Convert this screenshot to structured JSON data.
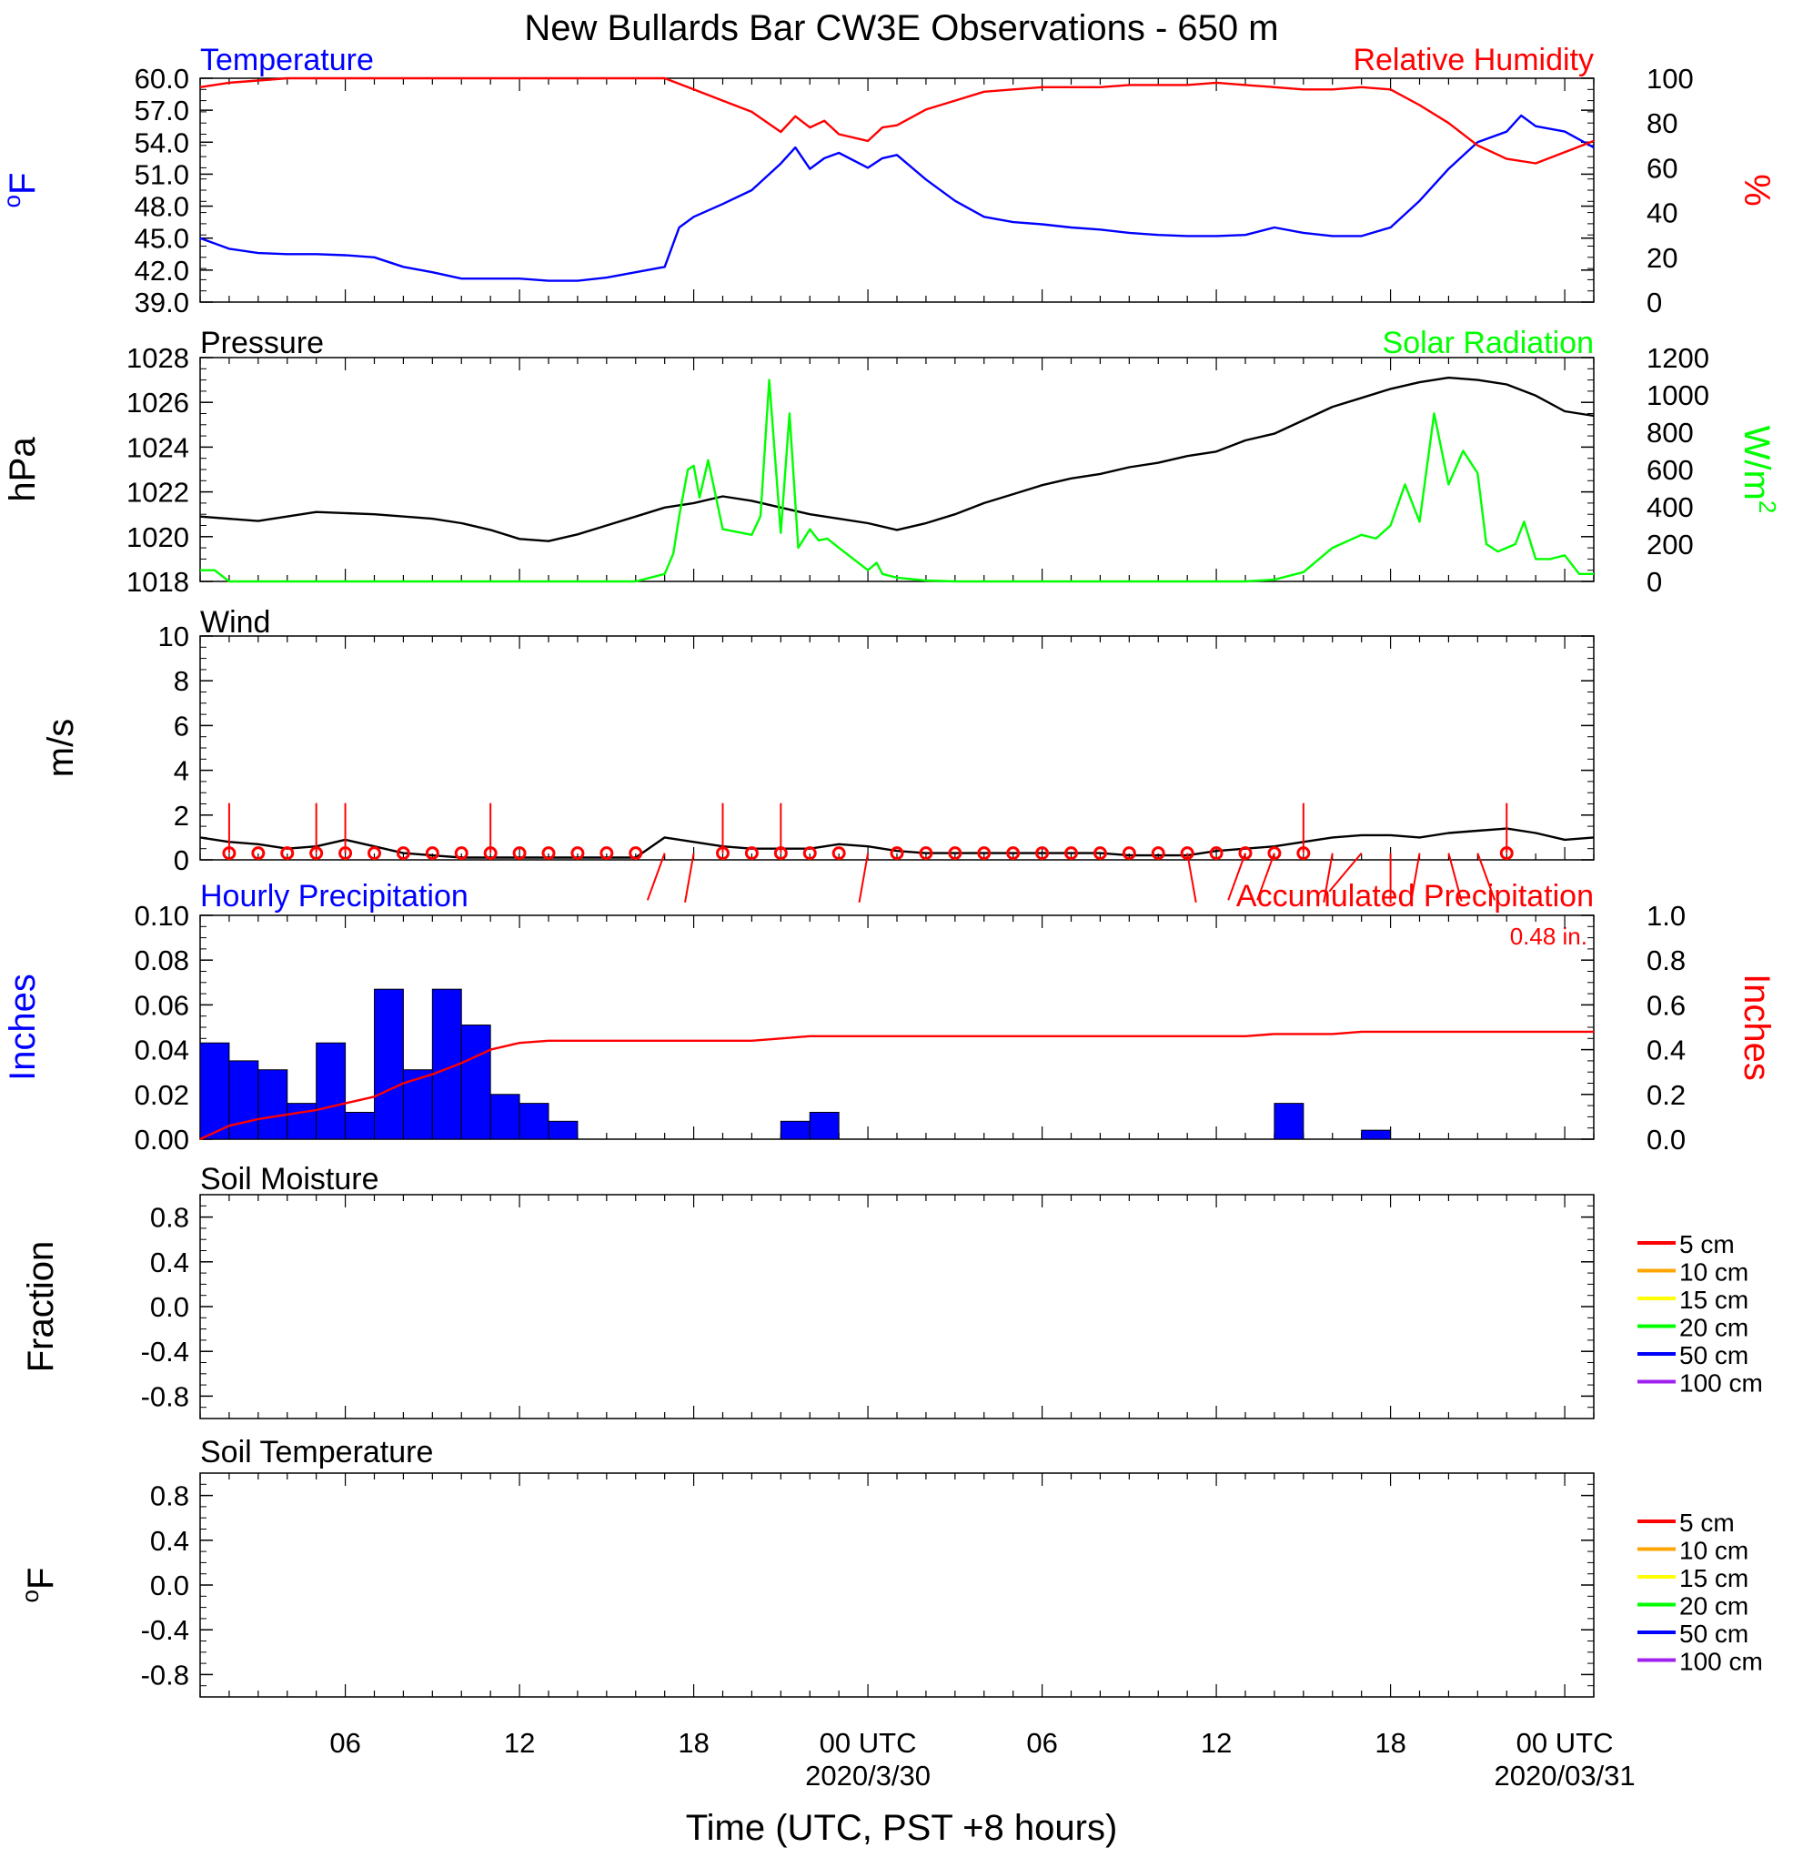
{
  "title": "New Bullards Bar CW3E Observations - 650 m",
  "xlabel": "Time (UTC, PST +8 hours)",
  "x_range_hours": [
    0,
    48
  ],
  "x_ticks": [
    {
      "h": 5,
      "label": "06",
      "date": ""
    },
    {
      "h": 11,
      "label": "12",
      "date": ""
    },
    {
      "h": 17,
      "label": "18",
      "date": ""
    },
    {
      "h": 23,
      "label": "00 UTC",
      "date": "2020/3/30"
    },
    {
      "h": 29,
      "label": "06",
      "date": ""
    },
    {
      "h": 35,
      "label": "12",
      "date": ""
    },
    {
      "h": 41,
      "label": "18",
      "date": ""
    },
    {
      "h": 47,
      "label": "00 UTC",
      "date": "2020/03/31"
    }
  ],
  "colors": {
    "temperature": "#0000ff",
    "humidity": "#ff0000",
    "pressure": "#000000",
    "solar": "#00ff00",
    "wind": "#000000",
    "wind_barb": "#ff0000",
    "hourly_precip": "#0000ff",
    "accum_precip": "#ff0000"
  },
  "legend_soil": [
    "5 cm",
    "10 cm",
    "15 cm",
    "20 cm",
    "50 cm",
    "100 cm"
  ],
  "legend_soil_colors": [
    "#ff0000",
    "#ffa500",
    "#ffff00",
    "#00ff00",
    "#0000ff",
    "#a020f0"
  ],
  "chart_data": [
    {
      "type": "line",
      "title_left": "Temperature",
      "title_right": "Relative Humidity",
      "ylabel_left": "oF",
      "ylabel_right": "%",
      "ylim_left": [
        39,
        60
      ],
      "yticks_left": [
        "60.0",
        "57.0",
        "54.0",
        "51.0",
        "48.0",
        "45.0",
        "42.0",
        "39.0"
      ],
      "ylim_right": [
        0,
        100
      ],
      "yticks_right": [
        "100",
        "80",
        "60",
        "40",
        "20",
        "0"
      ],
      "series": [
        {
          "name": "Temperature",
          "axis": "left",
          "x": [
            0,
            1,
            2,
            3,
            4,
            5,
            6,
            7,
            8,
            9,
            10,
            11,
            12,
            13,
            14,
            15,
            16,
            16.5,
            17,
            18,
            19,
            20,
            20.5,
            21,
            21.5,
            22,
            23,
            23.5,
            24,
            25,
            26,
            27,
            28,
            29,
            30,
            31,
            32,
            33,
            34,
            35,
            36,
            37,
            38,
            39,
            40,
            41,
            42,
            43,
            44,
            45,
            45.5,
            46,
            47,
            48
          ],
          "y": [
            45.0,
            44.0,
            43.6,
            43.5,
            43.5,
            43.4,
            43.2,
            42.3,
            41.8,
            41.2,
            41.2,
            41.2,
            41.0,
            41.0,
            41.3,
            41.8,
            42.3,
            46.0,
            47.0,
            48.2,
            49.5,
            52.0,
            53.5,
            51.5,
            52.5,
            53.0,
            51.6,
            52.5,
            52.8,
            50.5,
            48.5,
            47.0,
            46.5,
            46.3,
            46.0,
            45.8,
            45.5,
            45.3,
            45.2,
            45.2,
            45.3,
            46.0,
            45.5,
            45.2,
            45.2,
            46.0,
            48.5,
            51.5,
            54.0,
            55.0,
            56.5,
            55.5,
            55.0,
            53.5
          ]
        },
        {
          "name": "Relative Humidity",
          "axis": "right",
          "x": [
            0,
            1,
            2,
            3,
            4,
            5,
            6,
            7,
            8,
            9,
            10,
            11,
            12,
            13,
            14,
            15,
            16,
            17,
            18,
            19,
            20,
            20.5,
            21,
            21.5,
            22,
            23,
            23.5,
            24,
            25,
            26,
            27,
            28,
            29,
            30,
            31,
            32,
            33,
            34,
            35,
            36,
            37,
            38,
            39,
            40,
            41,
            42,
            43,
            44,
            45,
            46,
            47,
            48
          ],
          "y": [
            96,
            98,
            99,
            100,
            100,
            100,
            100,
            100,
            100,
            100,
            100,
            100,
            100,
            100,
            100,
            100,
            100,
            95,
            90,
            85,
            76,
            83,
            78,
            81,
            75,
            72,
            78,
            79,
            86,
            90,
            94,
            95,
            96,
            96,
            96,
            97,
            97,
            97,
            98,
            97,
            96,
            95,
            95,
            96,
            95,
            88,
            80,
            70,
            64,
            62,
            67,
            72
          ]
        }
      ]
    },
    {
      "type": "line",
      "title_left": "Pressure",
      "title_right": "Solar Radiation",
      "ylabel_left": "hPa",
      "ylabel_right": "W/m2",
      "ylim_left": [
        1018,
        1028
      ],
      "yticks_left": [
        "1028",
        "1026",
        "1024",
        "1022",
        "1020",
        "1018"
      ],
      "ylim_right": [
        0,
        1200
      ],
      "yticks_right": [
        "1200",
        "1000",
        "800",
        "600",
        "400",
        "200",
        "0"
      ],
      "series": [
        {
          "name": "Pressure",
          "axis": "left",
          "x": [
            0,
            2,
            4,
            6,
            8,
            9,
            10,
            11,
            12,
            13,
            14,
            15,
            16,
            17,
            18,
            19,
            20,
            21,
            22,
            23,
            24,
            25,
            26,
            27,
            28,
            29,
            30,
            31,
            32,
            33,
            34,
            35,
            36,
            37,
            38,
            39,
            40,
            41,
            42,
            43,
            44,
            45,
            46,
            47,
            48
          ],
          "y": [
            1020.9,
            1020.7,
            1021.1,
            1021.0,
            1020.8,
            1020.6,
            1020.3,
            1019.9,
            1019.8,
            1020.1,
            1020.5,
            1020.9,
            1021.3,
            1021.5,
            1021.8,
            1021.6,
            1021.3,
            1021.0,
            1020.8,
            1020.6,
            1020.3,
            1020.6,
            1021.0,
            1021.5,
            1021.9,
            1022.3,
            1022.6,
            1022.8,
            1023.1,
            1023.3,
            1023.6,
            1023.8,
            1024.3,
            1024.6,
            1025.2,
            1025.8,
            1026.2,
            1026.6,
            1026.9,
            1027.1,
            1027.0,
            1026.8,
            1026.3,
            1025.6,
            1025.4
          ]
        },
        {
          "name": "Solar Radiation",
          "axis": "right",
          "x": [
            0,
            0.5,
            1,
            15,
            16,
            16.3,
            16.5,
            16.8,
            17,
            17.2,
            17.5,
            18,
            19,
            19.3,
            19.6,
            20,
            20.3,
            20.6,
            21,
            21.3,
            21.6,
            22,
            23,
            23.3,
            23.5,
            24,
            25,
            26,
            36,
            37,
            38,
            39,
            40,
            40.5,
            41,
            41.5,
            42,
            42.5,
            43,
            43.5,
            44,
            44.3,
            44.7,
            45,
            45.3,
            45.6,
            46,
            46.5,
            47,
            47.5,
            48
          ],
          "y": [
            60,
            60,
            0,
            0,
            40,
            150,
            350,
            600,
            620,
            450,
            650,
            280,
            250,
            350,
            1080,
            260,
            900,
            180,
            280,
            220,
            230,
            180,
            60,
            100,
            40,
            20,
            5,
            0,
            0,
            10,
            50,
            180,
            250,
            230,
            300,
            520,
            320,
            900,
            520,
            700,
            580,
            200,
            160,
            180,
            200,
            320,
            120,
            120,
            140,
            40,
            40
          ]
        }
      ]
    },
    {
      "type": "line",
      "title_left": "Wind",
      "ylabel_left": "m/s",
      "ylim_left": [
        0,
        10
      ],
      "yticks_left": [
        "10",
        "8",
        "6",
        "4",
        "2",
        "0"
      ],
      "series": [
        {
          "name": "Wind",
          "axis": "left",
          "x": [
            0,
            1,
            2,
            3,
            4,
            5,
            6,
            7,
            8,
            9,
            10,
            11,
            12,
            13,
            14,
            15,
            16,
            17,
            18,
            19,
            20,
            21,
            22,
            23,
            24,
            25,
            26,
            27,
            28,
            29,
            30,
            31,
            32,
            33,
            34,
            35,
            36,
            37,
            38,
            39,
            40,
            41,
            42,
            43,
            44,
            45,
            46,
            47,
            48
          ],
          "y": [
            1.0,
            0.8,
            0.7,
            0.5,
            0.6,
            0.9,
            0.6,
            0.3,
            0.2,
            0.1,
            0.1,
            0.1,
            0.1,
            0.1,
            0.1,
            0.1,
            1.0,
            0.8,
            0.6,
            0.5,
            0.5,
            0.5,
            0.7,
            0.6,
            0.4,
            0.3,
            0.3,
            0.3,
            0.3,
            0.3,
            0.3,
            0.3,
            0.2,
            0.2,
            0.2,
            0.4,
            0.5,
            0.6,
            0.8,
            1.0,
            1.1,
            1.1,
            1.0,
            1.2,
            1.3,
            1.4,
            1.2,
            0.9,
            1.0
          ]
        }
      ],
      "barbs": [
        {
          "h": 1,
          "speed": 0.4,
          "dir": 0
        },
        {
          "h": 2,
          "speed": 0.1,
          "dir": 0
        },
        {
          "h": 3,
          "speed": 0.1,
          "dir": 10
        },
        {
          "h": 4,
          "speed": 0.5,
          "dir": 0
        },
        {
          "h": 5,
          "speed": 0.4,
          "dir": 0
        },
        {
          "h": 6,
          "speed": 0.1,
          "dir": 0
        },
        {
          "h": 7,
          "speed": 0.1,
          "dir": 0
        },
        {
          "h": 8,
          "speed": 0.1,
          "dir": 230
        },
        {
          "h": 9,
          "speed": 0.1,
          "dir": 0
        },
        {
          "h": 10,
          "speed": 0.5,
          "dir": 0
        },
        {
          "h": 11,
          "speed": 0.1,
          "dir": 0
        },
        {
          "h": 12,
          "speed": 0.1,
          "dir": 0
        },
        {
          "h": 13,
          "speed": 0.1,
          "dir": 0
        },
        {
          "h": 14,
          "speed": 0.1,
          "dir": 0
        },
        {
          "h": 15,
          "speed": 0.1,
          "dir": 0
        },
        {
          "h": 16,
          "speed": 0.9,
          "dir": 200
        },
        {
          "h": 17,
          "speed": 0.9,
          "dir": 190
        },
        {
          "h": 18,
          "speed": 0.5,
          "dir": 0
        },
        {
          "h": 19,
          "speed": 0.1,
          "dir": 0
        },
        {
          "h": 20,
          "speed": 0.4,
          "dir": 0
        },
        {
          "h": 21,
          "speed": 0.2,
          "dir": 20
        },
        {
          "h": 22,
          "speed": 0.1,
          "dir": 0
        },
        {
          "h": 23,
          "speed": 0.8,
          "dir": 190
        },
        {
          "h": 24,
          "speed": 0.1,
          "dir": 0
        },
        {
          "h": 25,
          "speed": 0.1,
          "dir": 0
        },
        {
          "h": 26,
          "speed": 0.1,
          "dir": 0
        },
        {
          "h": 27,
          "speed": 0.1,
          "dir": 0
        },
        {
          "h": 28,
          "speed": 0.1,
          "dir": 0
        },
        {
          "h": 29,
          "speed": 0.2,
          "dir": 0
        },
        {
          "h": 30,
          "speed": 0.2,
          "dir": 0
        },
        {
          "h": 31,
          "speed": 0.2,
          "dir": 0
        },
        {
          "h": 32,
          "speed": 0.1,
          "dir": 0
        },
        {
          "h": 33,
          "speed": 0.1,
          "dir": 0
        },
        {
          "h": 34,
          "speed": 0.5,
          "dir": 170
        },
        {
          "h": 35,
          "speed": 0.1,
          "dir": 0
        },
        {
          "h": 36,
          "speed": 0.4,
          "dir": 200
        },
        {
          "h": 37,
          "speed": 0.4,
          "dir": 200
        },
        {
          "h": 38,
          "speed": 0.5,
          "dir": 0
        },
        {
          "h": 39,
          "speed": 0.7,
          "dir": 190
        },
        {
          "h": 40,
          "speed": 0.7,
          "dir": 220
        },
        {
          "h": 41,
          "speed": 0.8,
          "dir": 180
        },
        {
          "h": 42,
          "speed": 0.9,
          "dir": 190
        },
        {
          "h": 43,
          "speed": 0.8,
          "dir": 165
        },
        {
          "h": 44,
          "speed": 0.6,
          "dir": 160
        },
        {
          "h": 45,
          "speed": 0.4,
          "dir": 0
        }
      ]
    },
    {
      "type": "bar",
      "title_left": "Hourly Precipitation",
      "title_right": "Accumulated Precipitation",
      "annotation": "0.48 in.",
      "ylabel_left": "Inches",
      "ylabel_right": "Inches",
      "ylim_left": [
        0,
        0.1
      ],
      "yticks_left": [
        "0.10",
        "0.08",
        "0.06",
        "0.04",
        "0.02",
        "0.00"
      ],
      "ylim_right": [
        0,
        1.0
      ],
      "yticks_right": [
        "1.0",
        "0.8",
        "0.6",
        "0.4",
        "0.2",
        "0.0"
      ],
      "series": [
        {
          "name": "Hourly Precipitation",
          "axis": "left",
          "x": [
            0,
            1,
            2,
            3,
            4,
            5,
            6,
            7,
            8,
            9,
            10,
            11,
            12,
            20,
            21,
            37,
            40
          ],
          "values": [
            0.043,
            0.035,
            0.031,
            0.016,
            0.043,
            0.012,
            0.067,
            0.031,
            0.067,
            0.051,
            0.02,
            0.016,
            0.008,
            0.008,
            0.012,
            0.016,
            0.004
          ]
        },
        {
          "name": "Accumulated Precipitation",
          "axis": "right",
          "x": [
            0,
            1,
            2,
            3,
            4,
            5,
            6,
            7,
            8,
            9,
            10,
            11,
            12,
            13,
            19,
            20,
            21,
            22,
            30,
            36,
            37,
            39,
            40,
            48
          ],
          "y": [
            0.0,
            0.06,
            0.09,
            0.11,
            0.13,
            0.16,
            0.19,
            0.25,
            0.29,
            0.34,
            0.4,
            0.43,
            0.44,
            0.44,
            0.44,
            0.45,
            0.46,
            0.46,
            0.46,
            0.46,
            0.47,
            0.47,
            0.48,
            0.48
          ]
        }
      ]
    },
    {
      "type": "line",
      "title_left": "Soil Moisture",
      "ylabel_left": "Fraction",
      "ylim_left": [
        -1.0,
        1.0
      ],
      "yticks_left": [
        "0.8",
        "0.4",
        "0.0",
        "-0.4",
        "-0.8"
      ],
      "series": []
    },
    {
      "type": "line",
      "title_left": "Soil Temperature",
      "ylabel_left": "oF",
      "ylim_left": [
        -1.0,
        1.0
      ],
      "yticks_left": [
        "0.8",
        "0.4",
        "0.0",
        "-0.4",
        "-0.8"
      ],
      "series": []
    }
  ]
}
